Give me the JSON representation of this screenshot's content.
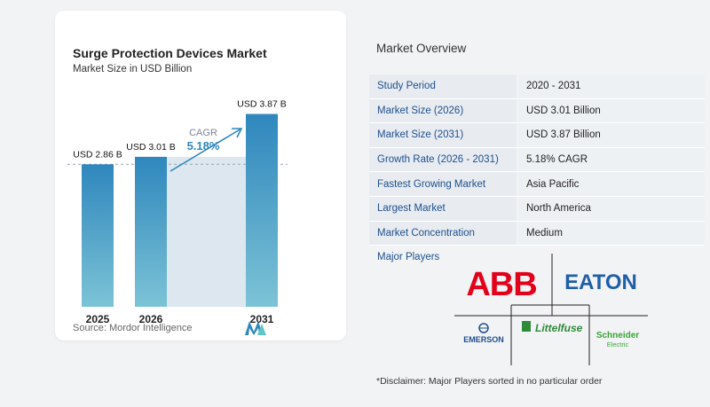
{
  "chart": {
    "title": "Surge Protection Devices Market",
    "subtitle": "Market Size in USD Billion",
    "source": "Source:  Mordor Intelligence",
    "cagr_label": "CAGR",
    "cagr_value": "5.18%"
  },
  "chart_data": {
    "type": "bar",
    "categories": [
      "2025",
      "2026",
      "2031"
    ],
    "values": [
      2.86,
      3.01,
      3.87
    ],
    "data_labels": [
      "USD 2.86 B",
      "USD 3.01 B",
      "USD 3.87 B"
    ],
    "ylim": [
      0,
      4.2
    ],
    "grid": false,
    "colors": {
      "bar": "#5aa3cf",
      "bar_dark": "#2f87bd",
      "band": "#dde7f0",
      "arrow": "#2f87bd"
    }
  },
  "overview": {
    "title": "Market Overview",
    "rows": [
      {
        "label": "Study Period",
        "value": "2020 - 2031"
      },
      {
        "label": "Market Size (2026)",
        "value": "USD 3.01 Billion"
      },
      {
        "label": "Market Size (2031)",
        "value": "USD 3.87 Billion"
      },
      {
        "label": "Growth Rate (2026 - 2031)",
        "value": "5.18% CAGR"
      },
      {
        "label": "Fastest Growing Market",
        "value": "Asia Pacific"
      },
      {
        "label": "Largest Market",
        "value": "North America"
      },
      {
        "label": "Market Concentration",
        "value": "Medium"
      }
    ],
    "players_label": "Major Players",
    "players": [
      "ABB",
      "EATON",
      "EMERSON",
      "Littelfuse",
      "Schneider",
      "Electric"
    ],
    "disclaimer": "*Disclaimer: Major Players sorted in no particular order"
  }
}
